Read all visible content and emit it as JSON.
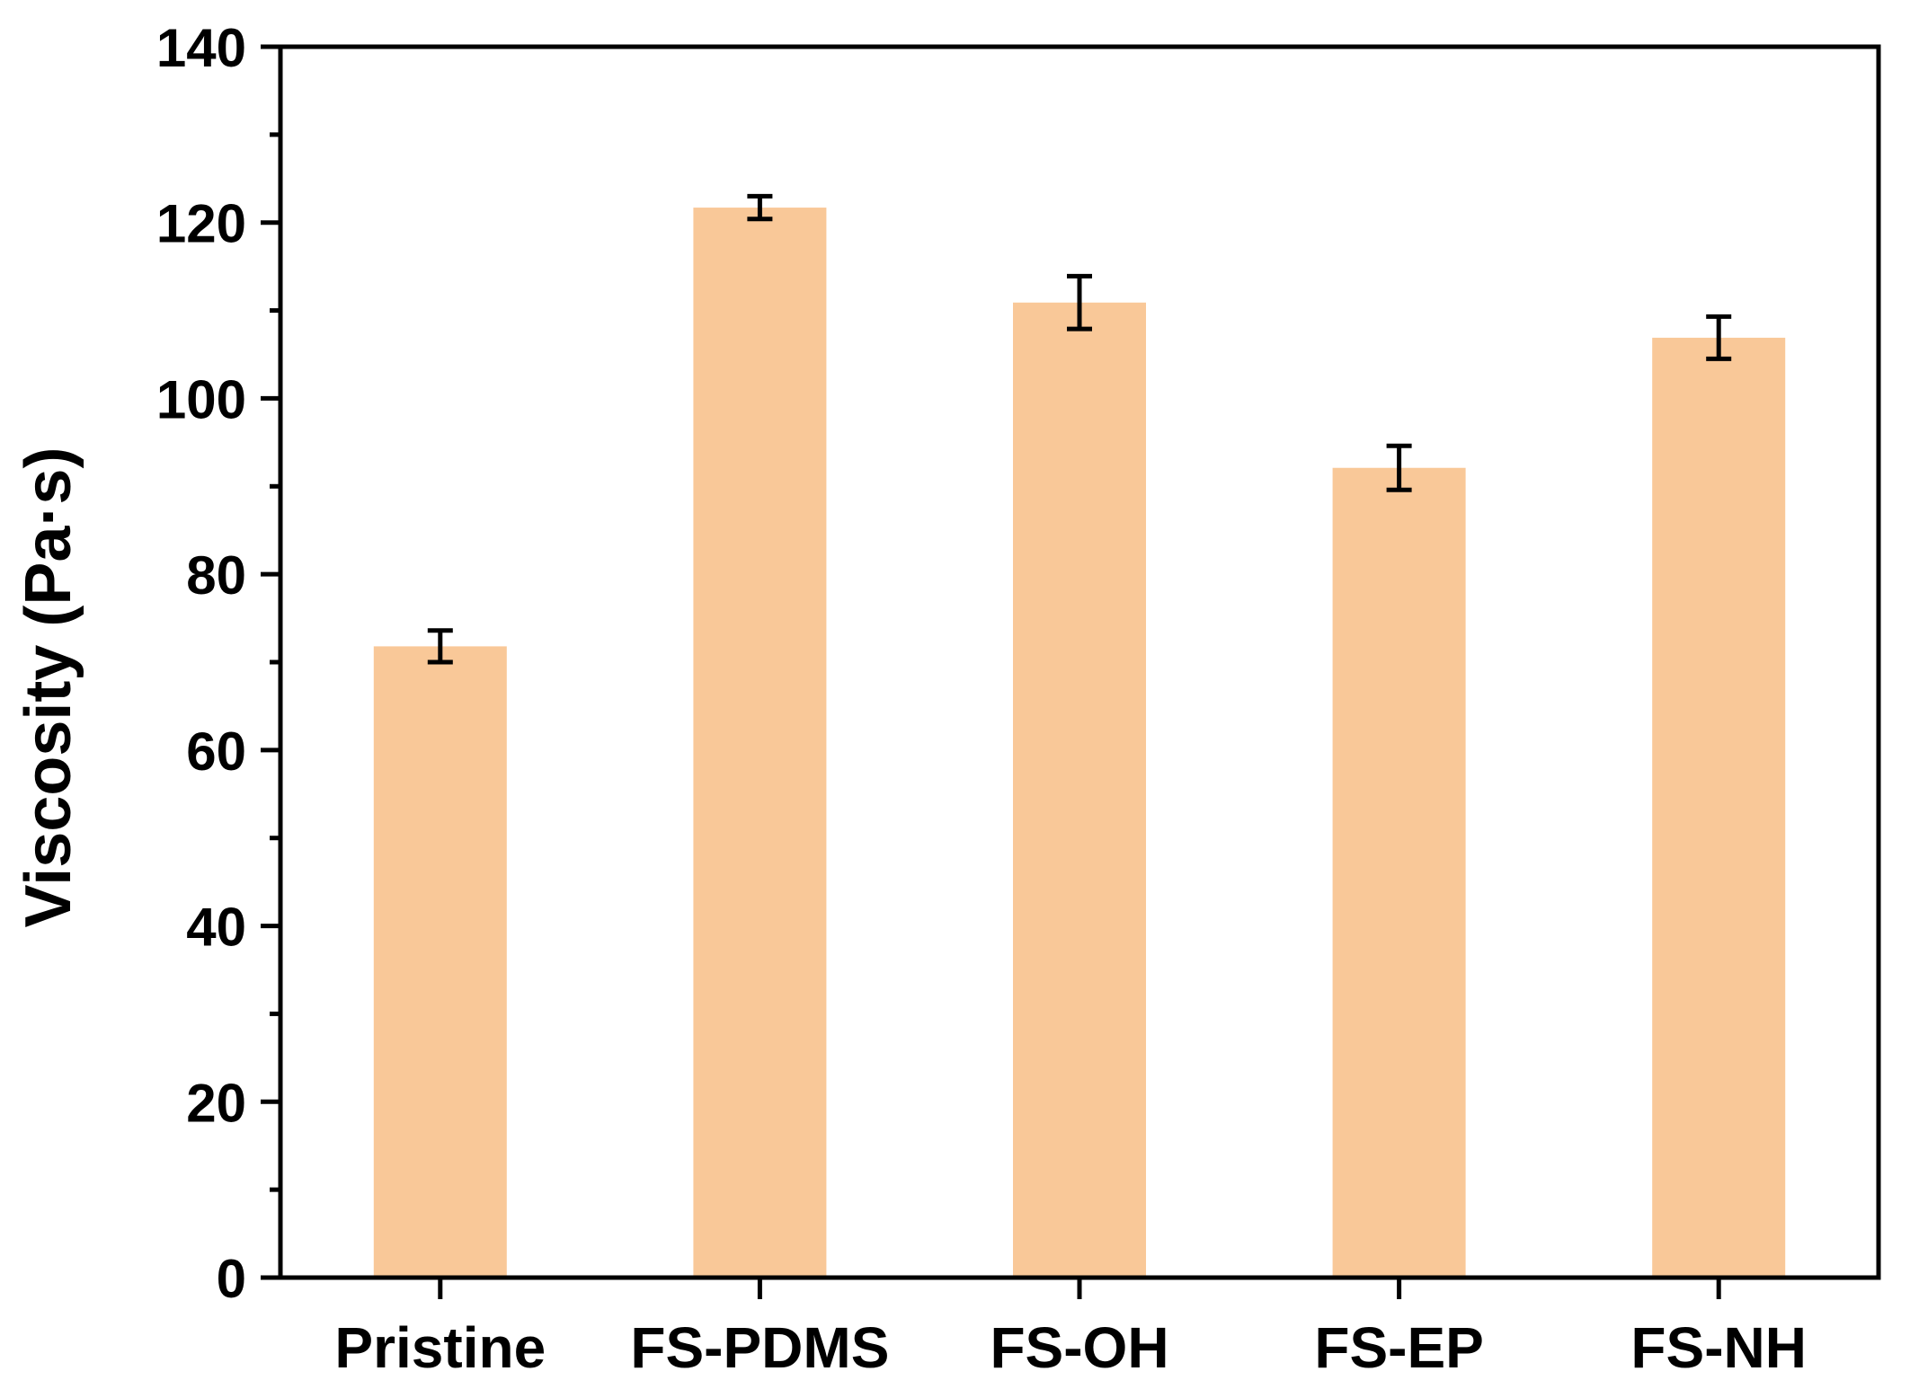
{
  "chart_data": {
    "type": "bar",
    "title": "",
    "xlabel": "",
    "ylabel": "Viscosity (Pa·s)",
    "categories": [
      "Pristine",
      "FS-PDMS",
      "FS-OH",
      "FS-EP",
      "FS-NH"
    ],
    "values": [
      71.8,
      121.7,
      110.9,
      92.1,
      106.9
    ],
    "errors": [
      1.8,
      1.3,
      3.0,
      2.5,
      2.4
    ],
    "ylim": [
      0,
      140
    ],
    "yticks": [
      "0",
      "20",
      "40",
      "60",
      "80",
      "100",
      "120",
      "140"
    ],
    "grid": false,
    "legend": "none",
    "bar_color": "#F9C898",
    "axis_color": "#000000"
  }
}
